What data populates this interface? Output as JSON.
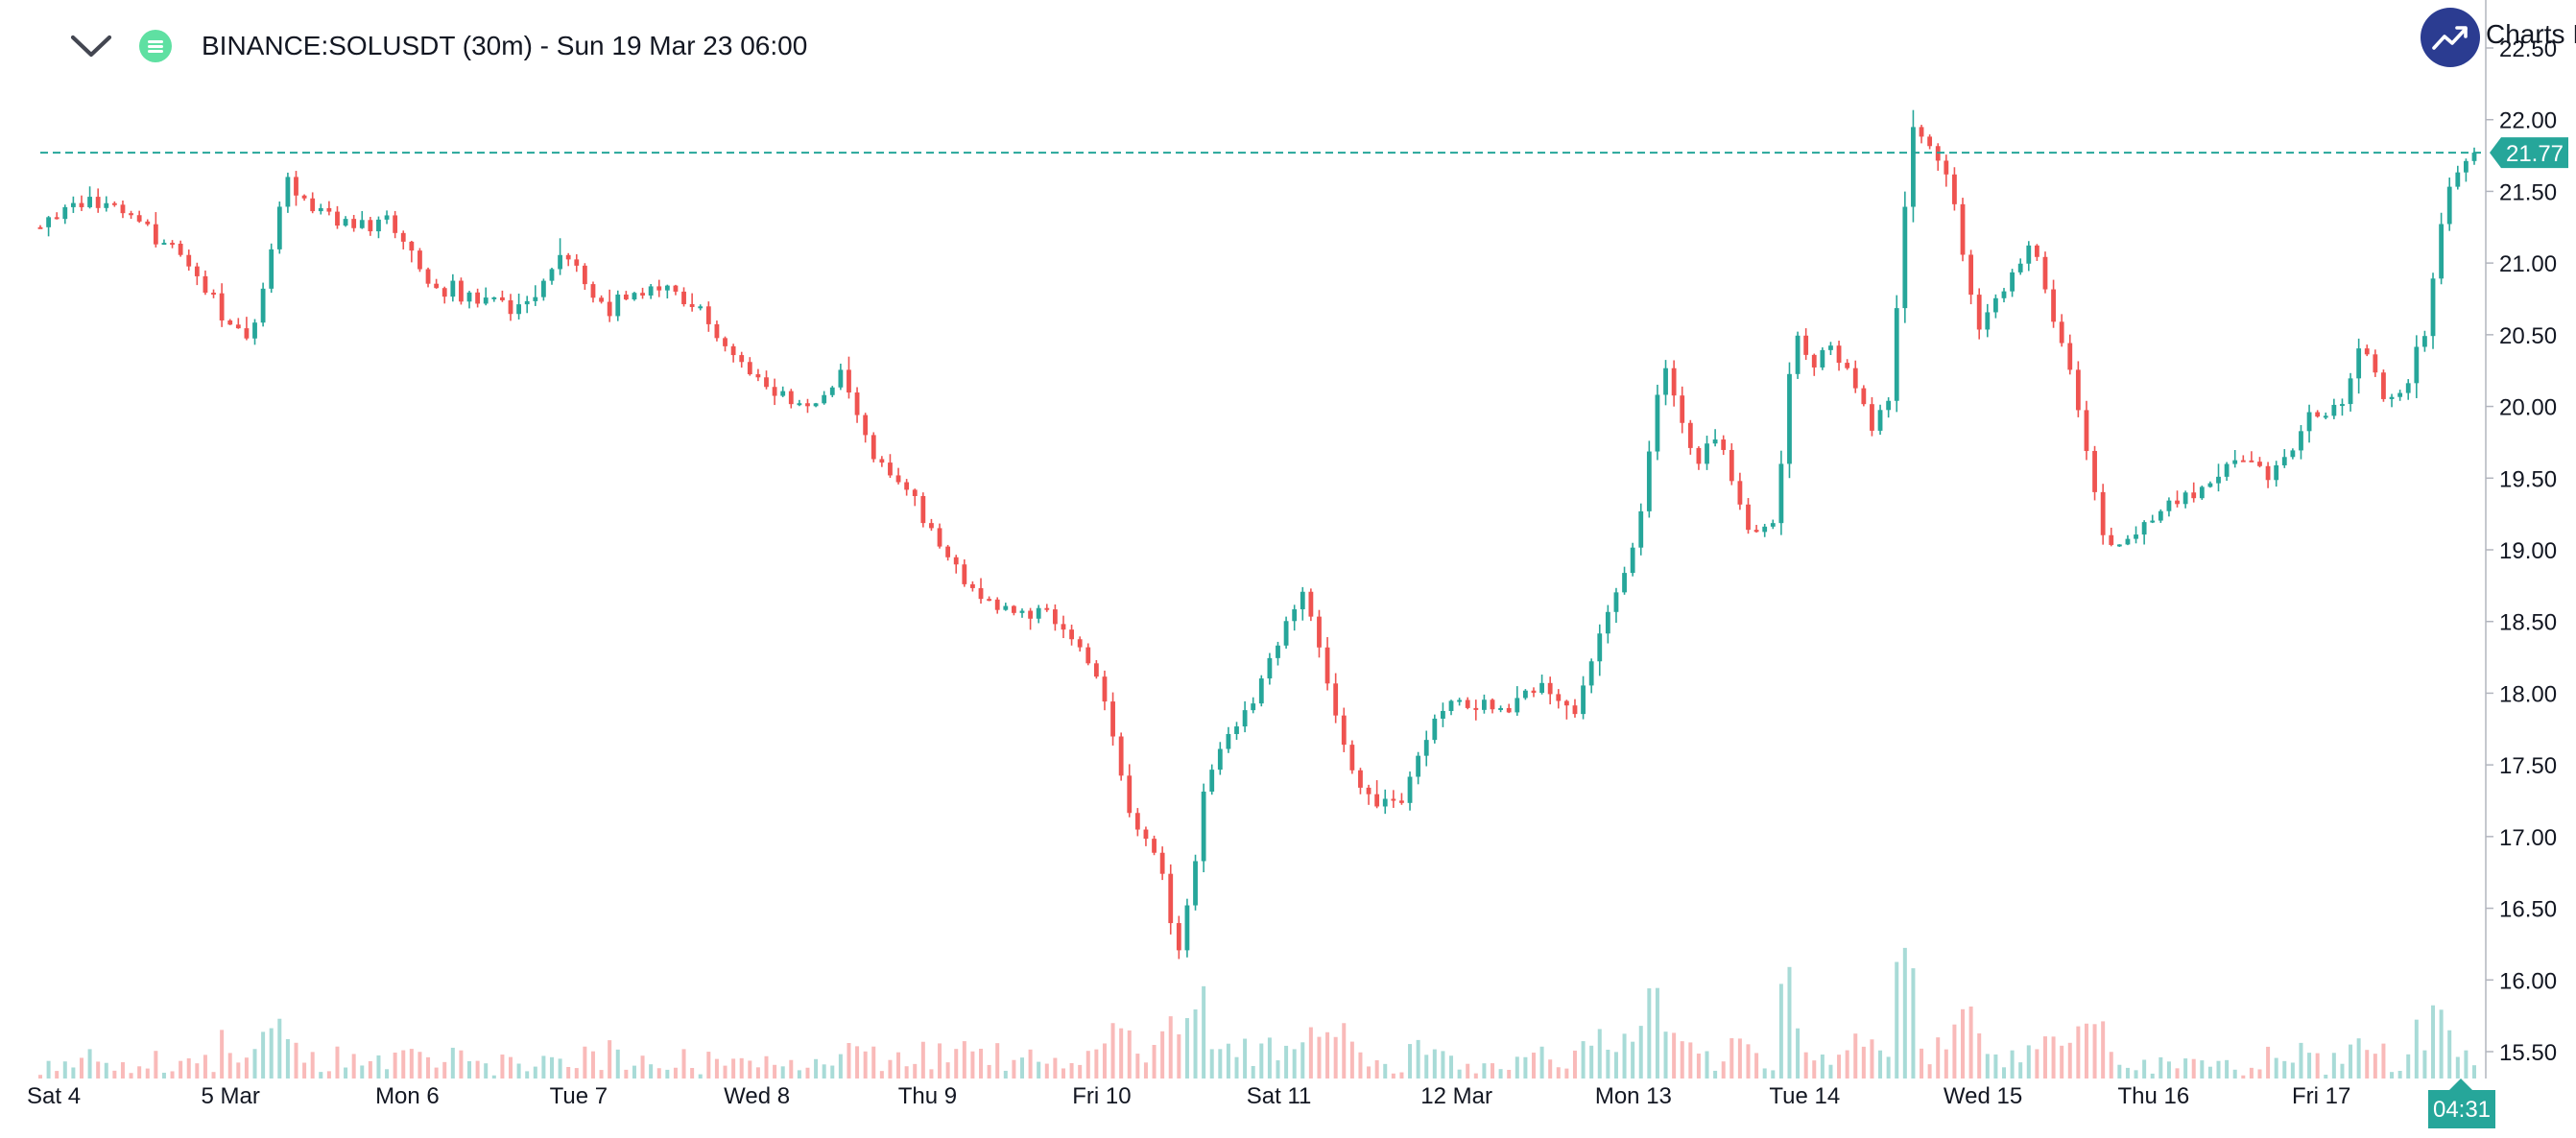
{
  "header": {
    "title": "BINANCE:SOLUSDT (30m) - Sun 19 Mar 23 06:00",
    "brand_label": "Charts I"
  },
  "colors": {
    "up": "#26a69a",
    "down": "#ef5350",
    "brand": "#2b3c91",
    "status": "#5fe0a2"
  },
  "icons": {
    "menu": "chevron-down-icon",
    "status": "list-icon",
    "brand": "trend-up-icon"
  },
  "chart_data": {
    "type": "candlestick",
    "symbol": "BINANCE:SOLUSDT",
    "interval": "30m",
    "ylim": [
      15.3,
      22.55
    ],
    "y_ticks": [
      "15.50",
      "16.00",
      "16.50",
      "17.00",
      "17.50",
      "18.00",
      "18.50",
      "19.00",
      "19.50",
      "20.00",
      "20.50",
      "21.00",
      "21.50",
      "22.00",
      "22.50"
    ],
    "x_labels": [
      "Sat 4",
      "5 Mar",
      "Mon 6",
      "Tue 7",
      "Wed 8",
      "Thu 9",
      "Fri 10",
      "Sat 11",
      "12 Mar",
      "Mon 13",
      "Tue 14",
      "Wed 15",
      "Thu 16",
      "Fri 17"
    ],
    "last_price": "21.77",
    "countdown": "04:31",
    "price_path": [
      [
        "Sat 4",
        21.25
      ],
      [
        "Sat 4",
        21.45
      ],
      [
        "Sat 4",
        21.3
      ],
      [
        "Sat 4",
        21.1
      ],
      [
        "5 Mar",
        20.7
      ],
      [
        "5 Mar",
        20.35
      ],
      [
        "5 Mar",
        21.55
      ],
      [
        "5 Mar",
        21.35
      ],
      [
        "5 Mar",
        21.3
      ],
      [
        "Mon 6",
        21.25
      ],
      [
        "Mon 6",
        20.8
      ],
      [
        "Mon 6",
        20.75
      ],
      [
        "Mon 6",
        20.7
      ],
      [
        "Tue 7",
        21.05
      ],
      [
        "Tue 7",
        20.65
      ],
      [
        "Tue 7",
        20.85
      ],
      [
        "Tue 7",
        20.7
      ],
      [
        "Wed 8",
        20.3
      ],
      [
        "Wed 8",
        20.15
      ],
      [
        "Wed 8",
        19.95
      ],
      [
        "Wed 8",
        20.2
      ],
      [
        "Wed 8",
        19.65
      ],
      [
        "Thu 9",
        19.3
      ],
      [
        "Thu 9",
        18.8
      ],
      [
        "Thu 9",
        18.55
      ],
      [
        "Thu 9",
        18.6
      ],
      [
        "Fri 10",
        18.35
      ],
      [
        "Fri 10",
        17.9
      ],
      [
        "Fri 10",
        17.1
      ],
      [
        "Fri 10",
        16.9
      ],
      [
        "Fri 10",
        16.15
      ],
      [
        "Fri 10",
        17.3
      ],
      [
        "Fri 10",
        17.75
      ],
      [
        "Sat 11",
        17.95
      ],
      [
        "Sat 11",
        18.4
      ],
      [
        "Sat 11",
        18.7
      ],
      [
        "Sat 11",
        18.0
      ],
      [
        "Sat 11",
        17.4
      ],
      [
        "Sat 11",
        17.2
      ],
      [
        "Sat 11",
        17.3
      ],
      [
        "12 Mar",
        17.85
      ],
      [
        "12 Mar",
        17.95
      ],
      [
        "12 Mar",
        17.85
      ],
      [
        "12 Mar",
        18.1
      ],
      [
        "12 Mar",
        17.85
      ],
      [
        "Mon 13",
        18.5
      ],
      [
        "Mon 13",
        19.0
      ],
      [
        "Mon 13",
        20.35
      ],
      [
        "Mon 13",
        19.65
      ],
      [
        "Mon 13",
        19.75
      ],
      [
        "Mon 13",
        19.1
      ],
      [
        "Tue 14",
        19.2
      ],
      [
        "Tue 14",
        20.55
      ],
      [
        "Tue 14",
        20.3
      ],
      [
        "Tue 14",
        20.4
      ],
      [
        "Tue 14",
        20.25
      ],
      [
        "Tue 14",
        19.9
      ],
      [
        "Tue 14",
        20.1
      ],
      [
        "Tue 14",
        21.9
      ],
      [
        "Tue 14",
        21.85
      ],
      [
        "Wed 15",
        21.5
      ],
      [
        "Wed 15",
        20.55
      ],
      [
        "Wed 15",
        20.75
      ],
      [
        "Wed 15",
        21.2
      ],
      [
        "Wed 15",
        20.7
      ],
      [
        "Wed 15",
        20.1
      ],
      [
        "Wed 15",
        19.1
      ],
      [
        "Thu 16",
        19.0
      ],
      [
        "Thu 16",
        19.3
      ],
      [
        "Thu 16",
        19.35
      ],
      [
        "Thu 16",
        19.5
      ],
      [
        "Thu 16",
        19.65
      ],
      [
        "Thu 16",
        19.45
      ],
      [
        "Fri 17",
        19.8
      ],
      [
        "Fri 17",
        20.05
      ],
      [
        "Fri 17",
        19.95
      ],
      [
        "Fri 17",
        20.45
      ],
      [
        "Fri 17",
        20.05
      ],
      [
        "Fri 17",
        20.1
      ],
      [
        "Fri 17",
        20.55
      ],
      [
        "Fri 17",
        21.55
      ],
      [
        "Fri 17",
        21.77
      ]
    ]
  }
}
